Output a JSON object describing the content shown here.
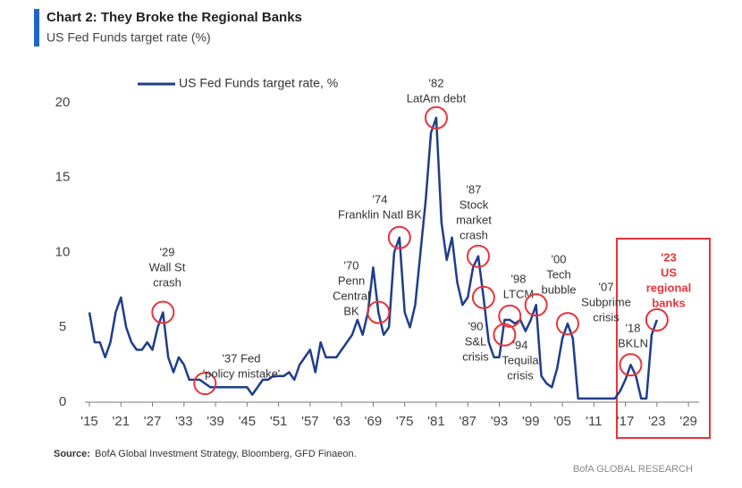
{
  "chart_data": {
    "type": "line",
    "title": "Chart 2: They Broke the Regional Banks",
    "subtitle": "US Fed Funds target rate (%)",
    "x": [
      1915,
      1916,
      1917,
      1918,
      1919,
      1920,
      1921,
      1922,
      1923,
      1924,
      1925,
      1926,
      1927,
      1928,
      1929,
      1930,
      1931,
      1932,
      1933,
      1934,
      1935,
      1936,
      1937,
      1938,
      1939,
      1940,
      1941,
      1942,
      1943,
      1944,
      1945,
      1946,
      1947,
      1948,
      1949,
      1950,
      1951,
      1952,
      1953,
      1954,
      1955,
      1956,
      1957,
      1958,
      1959,
      1960,
      1961,
      1962,
      1963,
      1964,
      1965,
      1966,
      1967,
      1968,
      1969,
      1970,
      1971,
      1972,
      1973,
      1974,
      1975,
      1976,
      1977,
      1978,
      1979,
      1980,
      1981,
      1982,
      1983,
      1984,
      1985,
      1986,
      1987,
      1988,
      1989,
      1990,
      1991,
      1992,
      1993,
      1994,
      1995,
      1996,
      1997,
      1998,
      1999,
      2000,
      2001,
      2002,
      2003,
      2004,
      2005,
      2006,
      2007,
      2008,
      2009,
      2010,
      2011,
      2012,
      2013,
      2014,
      2015,
      2016,
      2017,
      2018,
      2019,
      2020,
      2021,
      2022,
      2023
    ],
    "series": [
      {
        "name": "US Fed Funds target rate, %",
        "color": "#1f3d8c",
        "values": [
          6,
          4,
          4,
          3,
          4,
          6,
          7,
          5,
          4,
          3.5,
          3.5,
          4,
          3.5,
          5,
          6,
          3,
          2,
          3,
          2.5,
          1.5,
          1.5,
          1.5,
          1.25,
          1,
          1,
          1,
          1,
          1,
          1,
          1,
          1,
          0.5,
          1,
          1.5,
          1.5,
          1.75,
          1.75,
          1.75,
          2,
          1.5,
          2.5,
          3,
          3.5,
          2,
          4,
          3,
          3,
          3,
          3.5,
          4,
          4.5,
          5.5,
          4.5,
          6,
          9,
          6,
          4.5,
          5,
          10,
          11,
          6,
          5,
          6.5,
          10,
          13.5,
          18,
          19,
          12,
          9.5,
          11,
          8,
          6.5,
          7,
          9,
          9.75,
          7,
          4,
          3,
          3,
          5.5,
          5.5,
          5.25,
          5.5,
          4.75,
          5.5,
          6.5,
          1.75,
          1.25,
          1,
          2.25,
          4.25,
          5.25,
          4.25,
          0.25,
          0.25,
          0.25,
          0.25,
          0.25,
          0.25,
          0.25,
          0.25,
          0.75,
          1.5,
          2.5,
          1.75,
          0.25,
          0.25,
          4.5,
          5.5
        ]
      }
    ],
    "xlim": [
      1915,
      2030
    ],
    "ylim": [
      0,
      20
    ],
    "xticks": [
      {
        "value": 1915,
        "label": "'15"
      },
      {
        "value": 1921,
        "label": "'21"
      },
      {
        "value": 1927,
        "label": "'27"
      },
      {
        "value": 1933,
        "label": "'33"
      },
      {
        "value": 1939,
        "label": "'39"
      },
      {
        "value": 1945,
        "label": "'45"
      },
      {
        "value": 1951,
        "label": "'51"
      },
      {
        "value": 1957,
        "label": "'57"
      },
      {
        "value": 1963,
        "label": "'63"
      },
      {
        "value": 1969,
        "label": "'69"
      },
      {
        "value": 1975,
        "label": "'75"
      },
      {
        "value": 1981,
        "label": "'81"
      },
      {
        "value": 1987,
        "label": "'87"
      },
      {
        "value": 1993,
        "label": "'93"
      },
      {
        "value": 1999,
        "label": "'99"
      },
      {
        "value": 2005,
        "label": "'05"
      },
      {
        "value": 2011,
        "label": "'11"
      },
      {
        "value": 2017,
        "label": "'17"
      },
      {
        "value": 2023,
        "label": "'23"
      },
      {
        "value": 2029,
        "label": "'29"
      }
    ],
    "yticks": [
      0,
      5,
      10,
      15,
      20
    ],
    "grid": false,
    "annotations": [
      {
        "lines": [
          "'29",
          "Wall St",
          "crash"
        ],
        "x": 1929,
        "y": 6
      },
      {
        "lines": [
          "'37 Fed",
          "'policy mistake'"
        ],
        "x": 1937,
        "y": 1.25
      },
      {
        "lines": [
          "'70",
          "Penn",
          "Central",
          "BK"
        ],
        "x": 1970,
        "y": 6
      },
      {
        "lines": [
          "'74",
          "Franklin Natl BK"
        ],
        "x": 1974,
        "y": 11
      },
      {
        "lines": [
          "'82",
          "LatAm debt"
        ],
        "x": 1981,
        "y": 19
      },
      {
        "lines": [
          "'87",
          "Stock",
          "market",
          "crash"
        ],
        "x": 1989,
        "y": 9.75
      },
      {
        "lines": [
          "'90",
          "S&L",
          "crisis"
        ],
        "x": 1990,
        "y": 7
      },
      {
        "lines": [
          "'94",
          "Tequila",
          "crisis"
        ],
        "x": 1994,
        "y": 4.5
      },
      {
        "lines": [
          "'98",
          "LTCM"
        ],
        "x": 1995,
        "y": 5.75
      },
      {
        "lines": [
          "'00",
          "Tech",
          "bubble"
        ],
        "x": 2000,
        "y": 6.5
      },
      {
        "lines": [
          "'07",
          "Subprime",
          "crisis"
        ],
        "x": 2006,
        "y": 5.25
      },
      {
        "lines": [
          "'18",
          "BKLN"
        ],
        "x": 2018,
        "y": 2.5
      },
      {
        "lines": [
          "'23",
          "US",
          "regional",
          "banks"
        ],
        "x": 2023,
        "y": 5.5,
        "color": "#e8343a"
      }
    ],
    "source_label": "Source:",
    "source": "BofA Global Investment Strategy, Bloomberg, GFD Finaeon.",
    "footer": "BofA GLOBAL RESEARCH"
  }
}
